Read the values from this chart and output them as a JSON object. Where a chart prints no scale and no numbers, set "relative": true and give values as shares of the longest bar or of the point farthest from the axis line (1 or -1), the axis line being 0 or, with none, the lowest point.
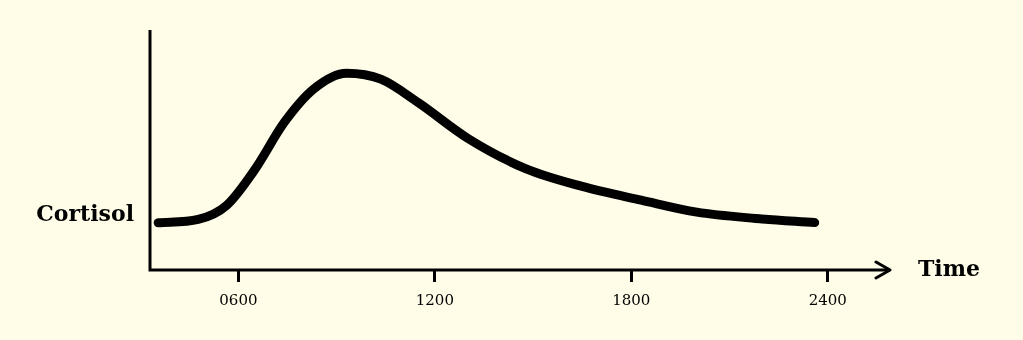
{
  "chart_data": {
    "type": "line",
    "relative": true,
    "xlabel": "Time",
    "ylabel": "Cortisol",
    "color": "#000000",
    "marker": "none",
    "x": [
      355,
      477,
      565,
      650,
      740,
      830,
      930,
      1035,
      1150,
      1300,
      1475,
      1650,
      1830,
      2000,
      2180,
      2360
    ],
    "values": [
      0.24,
      0.257,
      0.33,
      0.51,
      0.75,
      0.92,
      1.0,
      0.97,
      0.85,
      0.67,
      0.517,
      0.425,
      0.355,
      0.294,
      0.262,
      0.241
    ],
    "xlim": [
      330,
      2590
    ],
    "xticks": [
      {
        "value": 600,
        "label": "0600"
      },
      1200,
      1800,
      2400
    ]
  }
}
